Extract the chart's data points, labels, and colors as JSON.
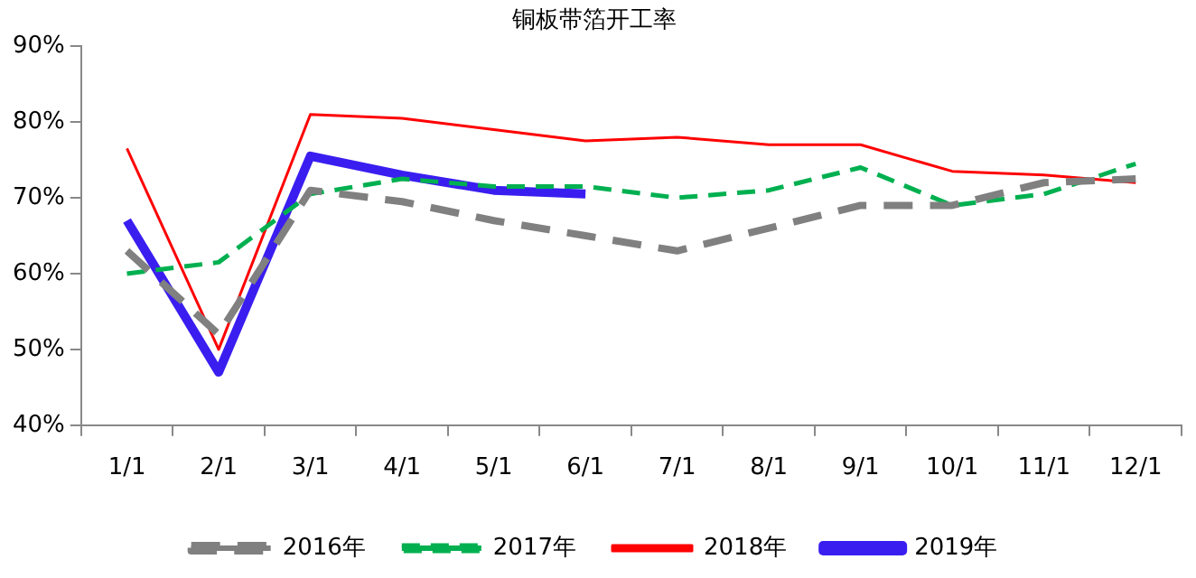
{
  "chart_data": {
    "type": "line",
    "title": "铜板带箔开工率",
    "categories": [
      "1/1",
      "2/1",
      "3/1",
      "4/1",
      "5/1",
      "6/1",
      "7/1",
      "8/1",
      "9/1",
      "10/1",
      "11/1",
      "12/1"
    ],
    "series": [
      {
        "name": "2016年",
        "color": "#808080",
        "line_style": "dashed",
        "values": [
          63,
          52,
          71,
          69.5,
          67,
          65,
          63,
          66,
          69,
          69,
          72,
          72.5
        ]
      },
      {
        "name": "2017年",
        "color": "#00b050",
        "line_style": "dashed",
        "values": [
          60,
          61.5,
          70.5,
          72.5,
          71.5,
          71.5,
          70,
          71,
          74,
          69,
          70.5,
          74.5
        ]
      },
      {
        "name": "2018年",
        "color": "#ff0000",
        "line_style": "solid",
        "values": [
          76.5,
          50,
          81,
          80.5,
          79,
          77.5,
          78,
          77,
          77,
          73.5,
          73,
          72
        ]
      },
      {
        "name": "2019年",
        "color": "#3a1ef0",
        "line_style": "solid",
        "values": [
          67,
          47,
          75.5,
          73,
          71,
          70.5,
          null,
          null,
          null,
          null,
          null,
          null
        ]
      }
    ],
    "ylim": [
      40,
      90
    ],
    "yticks": [
      {
        "value": 40,
        "label": "40%"
      },
      {
        "value": 50,
        "label": "50%"
      },
      {
        "value": 60,
        "label": "60%"
      },
      {
        "value": 70,
        "label": "70%"
      },
      {
        "value": 80,
        "label": "80%"
      },
      {
        "value": 90,
        "label": "90%"
      }
    ],
    "grid": false,
    "legend": "bottom",
    "marker": "none"
  }
}
